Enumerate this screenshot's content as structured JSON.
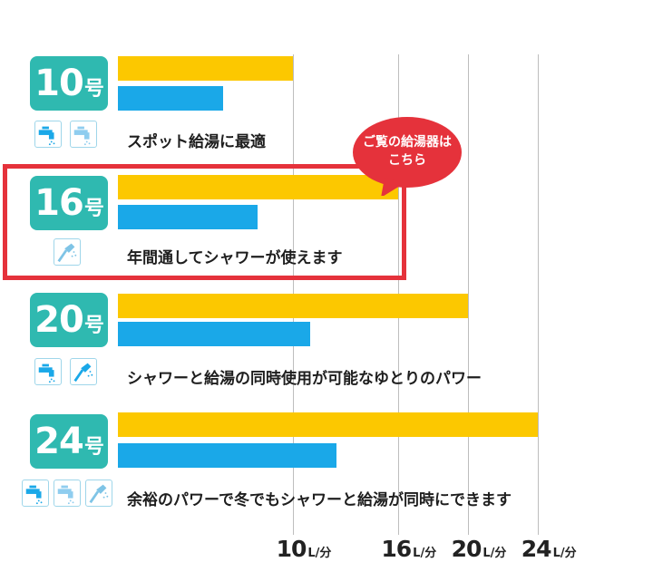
{
  "chart_data": {
    "type": "bar",
    "orientation": "horizontal",
    "categories": [
      "10号",
      "16号",
      "20号",
      "24号"
    ],
    "series": [
      {
        "values": [
          10,
          16,
          20,
          24
        ],
        "color": "#fcc800"
      },
      {
        "values": [
          6,
          8,
          11,
          12.5
        ],
        "color": "#1aa8e8"
      }
    ],
    "xticks": [
      {
        "value": 10,
        "num": "10",
        "unit": "L/分"
      },
      {
        "value": 16,
        "num": "16",
        "unit": "L/分"
      },
      {
        "value": 20,
        "num": "20",
        "unit": "L/分"
      },
      {
        "value": 24,
        "num": "24",
        "unit": "L/分"
      }
    ],
    "xlim": [
      0,
      24
    ],
    "grid": true,
    "rows": [
      {
        "num": "10",
        "unit": "号",
        "description": "スポット給湯に最適",
        "icons": [
          "faucet-icon",
          "faucet-icon"
        ]
      },
      {
        "num": "16",
        "unit": "号",
        "description": "年間通してシャワーが使えます",
        "icons": [
          "shower-icon"
        ]
      },
      {
        "num": "20",
        "unit": "号",
        "description": "シャワーと給湯の同時使用が可能なゆとりのパワー",
        "icons": [
          "faucet-icon",
          "shower-icon"
        ]
      },
      {
        "num": "24",
        "unit": "号",
        "description": "余裕のパワーで冬でもシャワーと給湯が同時にできます",
        "icons": [
          "faucet-icon",
          "faucet-icon",
          "shower-icon"
        ]
      }
    ],
    "callout": {
      "line1": "ご覧の給湯器は",
      "line2": "こちら",
      "color": "#e5323b"
    },
    "highlighted_row": "16号",
    "colors": {
      "badge": "#2fb9b0",
      "highlight": "#e5323b",
      "icon_border": "#9fd6ea"
    }
  }
}
